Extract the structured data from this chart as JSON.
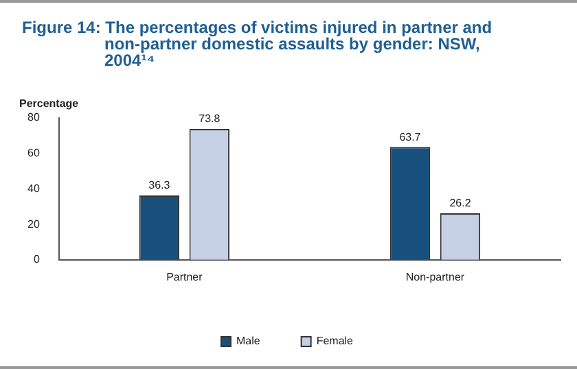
{
  "chart_data": {
    "type": "bar",
    "title": "Figure 14: The percentages of victims injured in partner and non-partner domestic assaults by gender: NSW, 2004¹⁴",
    "ylabel": "Percentage",
    "categories": [
      "Partner",
      "Non-partner"
    ],
    "series": [
      {
        "name": "Male",
        "color": "#17507d",
        "values": [
          36.3,
          63.7
        ]
      },
      {
        "name": "Female",
        "color": "#c6d0e4",
        "values": [
          73.8,
          26.2
        ]
      }
    ],
    "ylim": [
      0,
      80
    ],
    "yticks": [
      0,
      20,
      40,
      60,
      80
    ],
    "grid": false,
    "legend": "bottom",
    "data_labels": true
  }
}
